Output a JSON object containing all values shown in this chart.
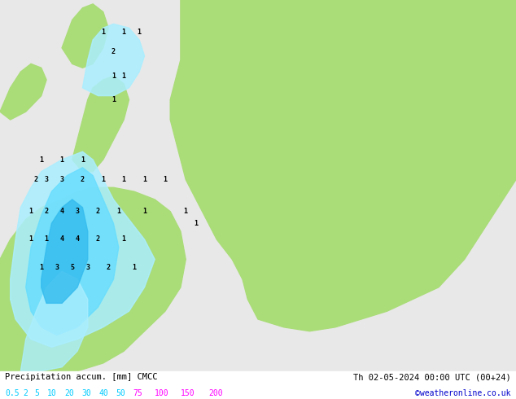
{
  "title_left": "Precipitation accum. [mm] CMCC",
  "title_right": "Th 02-05-2024 00:00 UTC (00+24)",
  "credit": "©weatheronline.co.uk",
  "colorbar_labels": [
    "0.5",
    "2",
    "5",
    "10",
    "20",
    "30",
    "40",
    "50",
    "75",
    "100",
    "150",
    "200"
  ],
  "colorbar_colors": [
    "#b4f0f0",
    "#78d2f0",
    "#3cb4f0",
    "#1e96dc",
    "#1478c8",
    "#0a5ab4",
    "#f078f0",
    "#f050c8",
    "#f00096",
    "#c8006e",
    "#960046",
    "#640028"
  ],
  "bg_color": "#d4d4d4",
  "land_color_green": "#aadc78",
  "land_color_light": "#e8e8e8",
  "sea_color": "#ffffff",
  "precip_light_cyan": "#aaeeff",
  "precip_medium_cyan": "#66ddff",
  "precip_dark_cyan": "#33bbee",
  "text_color_left": "#000000",
  "text_color_right": "#000000",
  "credit_color": "#0000cc",
  "label_color_low": "#00ccff",
  "label_color_high": "#ff00ff",
  "figsize": [
    6.34,
    4.9
  ],
  "dpi": 100
}
